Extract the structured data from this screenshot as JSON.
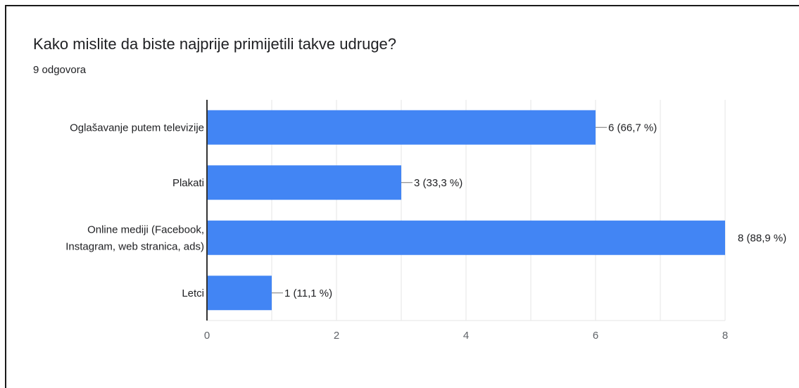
{
  "chart_data": {
    "type": "bar",
    "orientation": "horizontal",
    "title": "Kako mislite da biste najprije primijetili takve udruge?",
    "subtitle": "9 odgovora",
    "categories": [
      [
        "Oglašavanje putem televizije"
      ],
      [
        "Plakati"
      ],
      [
        "Online mediji (Facebook,",
        "Instagram, web stranica, ads)"
      ],
      [
        "Letci"
      ]
    ],
    "values": [
      6,
      3,
      8,
      1
    ],
    "data_labels": [
      "6 (66,7 %)",
      "3 (33,3 %)",
      "8 (88,9 %)",
      "1 (11,1 %)"
    ],
    "xticks": [
      0,
      2,
      4,
      6,
      8
    ],
    "xlim": [
      0,
      8
    ],
    "grid": true,
    "bar_color": "#4285f4"
  }
}
